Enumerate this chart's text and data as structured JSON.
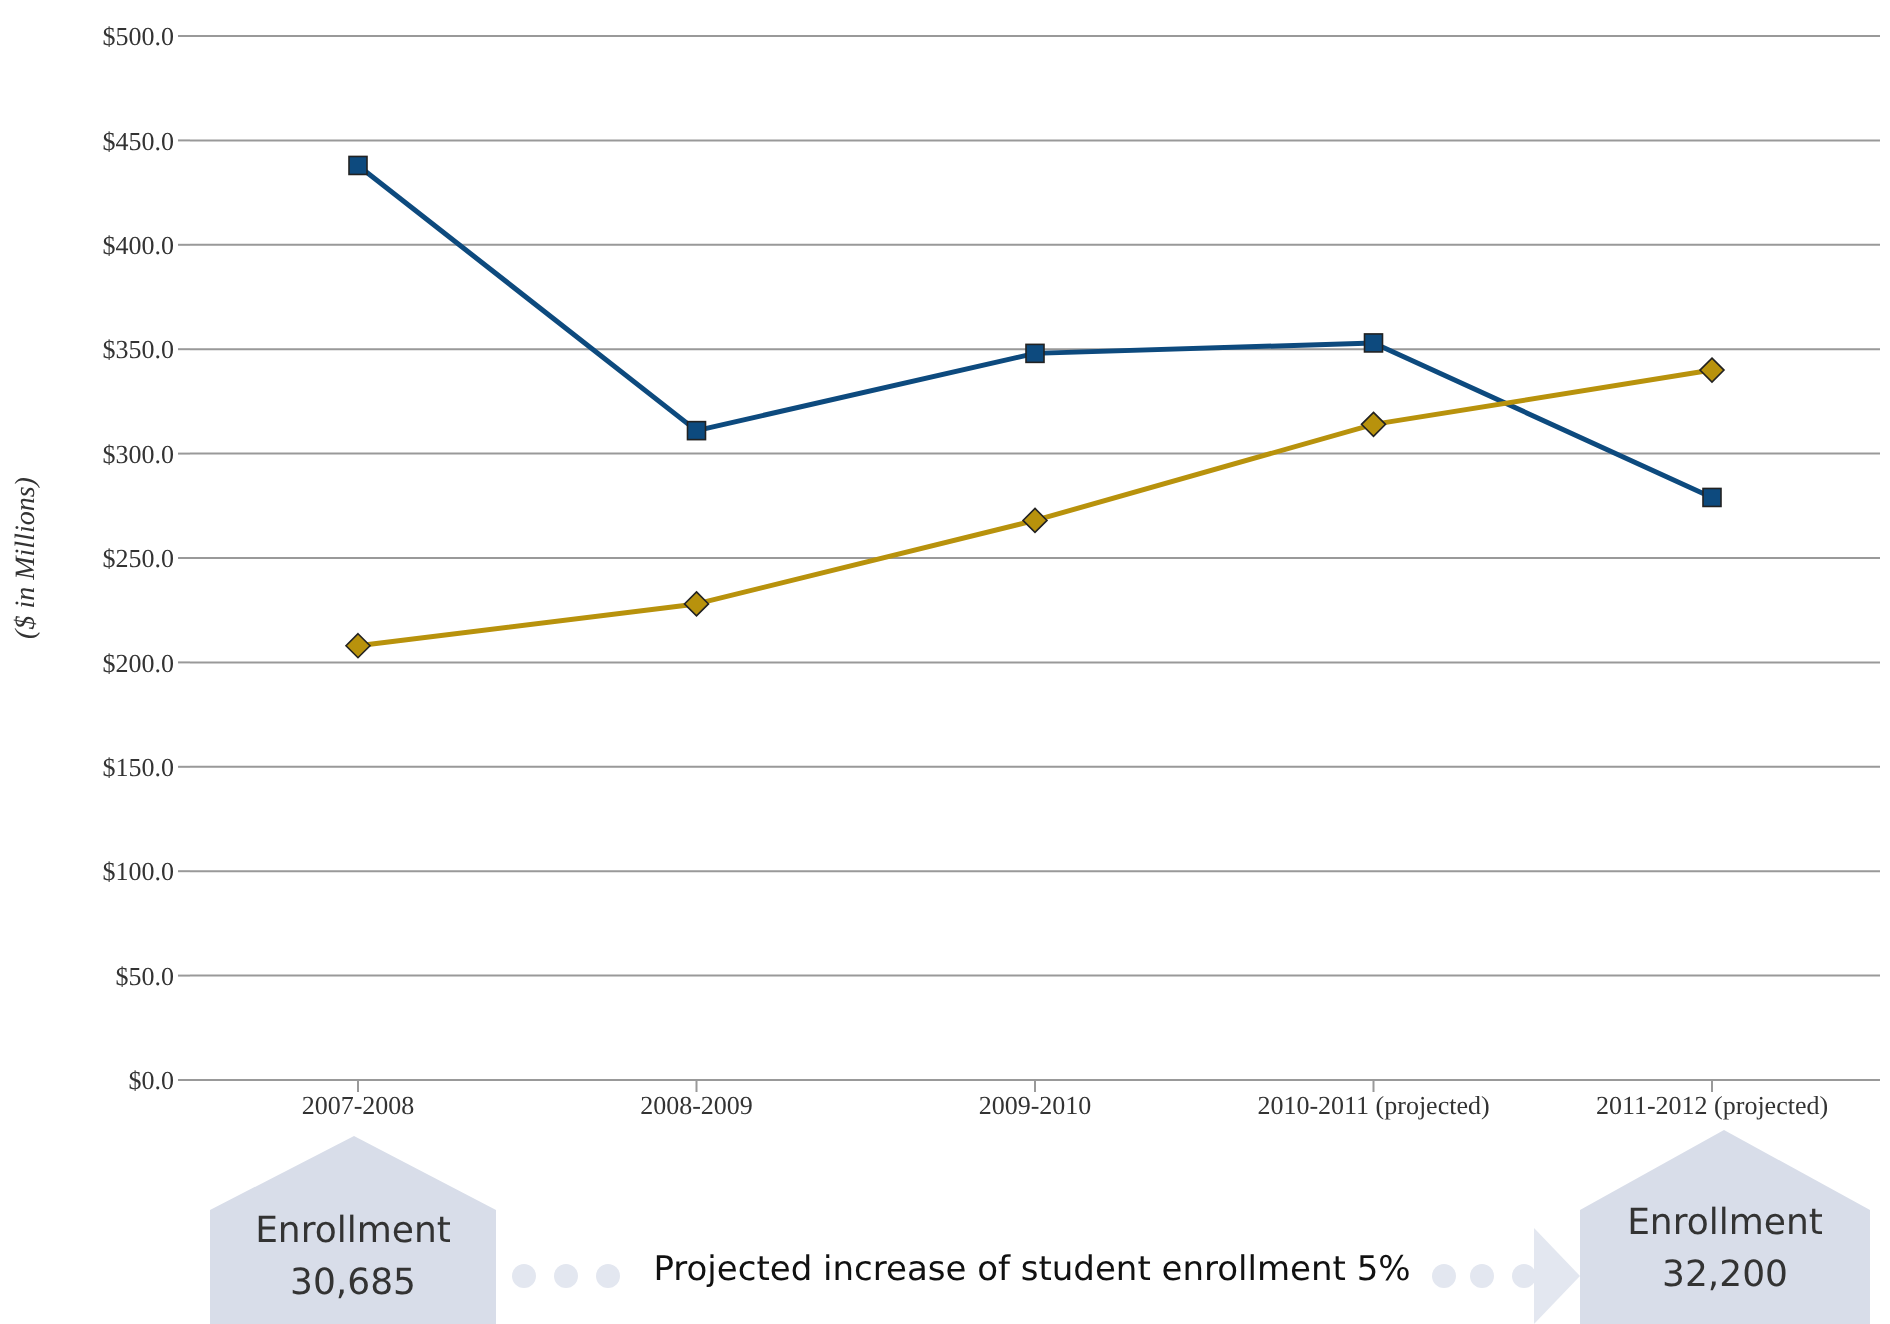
{
  "chart_data": {
    "type": "line",
    "ylabel": "($ in Millions)",
    "categories": [
      "2007-2008",
      "2008-2009",
      "2009-2010",
      "2010-2011 (projected)",
      "2011-2012 (projected)"
    ],
    "series": [
      {
        "color": "#0d4a7e",
        "marker": "square",
        "values": [
          438,
          311,
          348,
          353,
          279
        ]
      },
      {
        "color": "#b8920c",
        "marker": "diamond",
        "values": [
          208,
          228,
          268,
          314,
          340
        ]
      }
    ],
    "ylim": [
      0,
      500
    ],
    "yticks": [
      {
        "value": 0,
        "label": "$0.0"
      },
      {
        "value": 50,
        "label": "$50.0"
      },
      {
        "value": 100,
        "label": "$100.0"
      },
      {
        "value": 150,
        "label": "$150.0"
      },
      {
        "value": 200,
        "label": "$200.0"
      },
      {
        "value": 250,
        "label": "$250.0"
      },
      {
        "value": 300,
        "label": "$300.0"
      },
      {
        "value": 350,
        "label": "$350.0"
      },
      {
        "value": 400,
        "label": "$400.0"
      },
      {
        "value": 450,
        "label": "$450.0"
      },
      {
        "value": 500,
        "label": "$500.0"
      }
    ],
    "grid": "y",
    "legend": false,
    "annotations": [
      "Enrollment\n30,685",
      "Projected increase of student enrollment 5%",
      "Enrollment\n32,200"
    ]
  }
}
